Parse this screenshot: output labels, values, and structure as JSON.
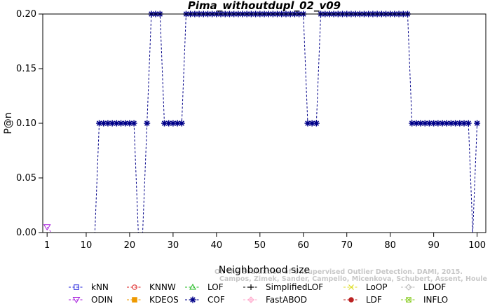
{
  "chart_data": {
    "type": "line",
    "title": "Pima_withoutdupl_02_v09",
    "xlabel": "Neighborhood size",
    "ylabel": "P@n",
    "xlim": [
      0,
      102
    ],
    "ylim": [
      0,
      0.2
    ],
    "xticks": [
      "1",
      "10",
      "20",
      "30",
      "40",
      "50",
      "60",
      "70",
      "80",
      "90",
      "100"
    ],
    "yticks": [
      "0.00",
      "0.05",
      "0.10",
      "0.15",
      "0.20"
    ],
    "grid": false,
    "legend_position": "bottom",
    "watermark": [
      "Campos, Zimek, Sander, Campello, Micenkova, Schubert, Assent, Houle",
      "On the Evaluation of Unsupervised Outlier Detection. DAMI, 2015."
    ],
    "series": [
      {
        "name": "kNN",
        "color": "#2222dd",
        "marker": "square",
        "constant": 0
      },
      {
        "name": "KNNW",
        "color": "#dd2222",
        "marker": "circle",
        "constant": 0
      },
      {
        "name": "LOF",
        "color": "#22bb22",
        "marker": "triangle-up",
        "constant": 0
      },
      {
        "name": "SimplifiedLOF",
        "color": "#000000",
        "marker": "plus",
        "constant": 0
      },
      {
        "name": "LoOP",
        "color": "#dddd22",
        "marker": "x",
        "constant": 0
      },
      {
        "name": "LDOF",
        "color": "#bbbbbb",
        "marker": "diamond",
        "constant": 0
      },
      {
        "name": "ODIN",
        "color": "#aa22dd",
        "marker": "triangle-down",
        "first": 0.005,
        "constant": 0
      },
      {
        "name": "KDEOS",
        "color": "#ee9900",
        "marker": "square-filled",
        "constant": 0
      },
      {
        "name": "COF",
        "color": "#000088",
        "marker": "asterisk",
        "segments": [
          [
            1,
            12,
            0
          ],
          [
            13,
            21,
            0.1
          ],
          [
            22,
            23,
            0
          ],
          [
            24,
            24,
            0.1
          ],
          [
            25,
            27,
            0.2
          ],
          [
            28,
            32,
            0.1
          ],
          [
            33,
            60,
            0.2
          ],
          [
            61,
            63,
            0.1
          ],
          [
            64,
            84,
            0.2
          ],
          [
            85,
            98,
            0.1
          ],
          [
            99,
            99,
            0
          ],
          [
            100,
            100,
            0.1
          ]
        ]
      },
      {
        "name": "FastABOD",
        "color": "#ffaacc",
        "marker": "diamond-plus",
        "constant": 0
      },
      {
        "name": "LDF",
        "color": "#bb2222",
        "marker": "circle-filled",
        "constant": 0
      },
      {
        "name": "INFLO",
        "color": "#88cc22",
        "marker": "square-x",
        "constant": 0
      }
    ]
  }
}
